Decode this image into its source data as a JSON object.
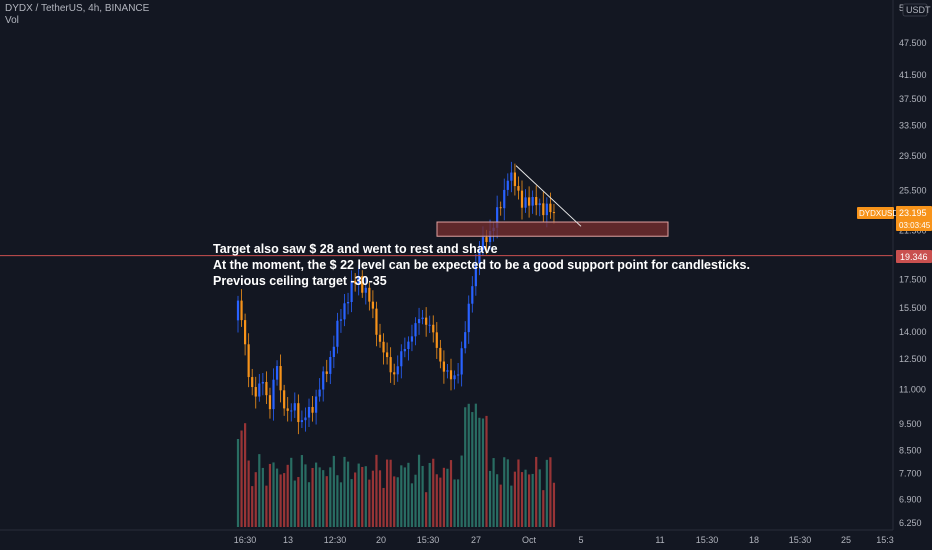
{
  "header": {
    "symbol_line": "DYDX / TetherUS, 4h, BINANCE",
    "indicator": "Vol"
  },
  "currency": "USDT",
  "price_scale_top": "5",
  "colors": {
    "background": "#131722",
    "up": "#2962ff",
    "down": "#f7931a",
    "vol_up": "#2e7d6f",
    "vol_down": "#b03a3a",
    "hline": "#c9504f",
    "zone_fill": "#7a2f2f",
    "price_badge": "#f7931a"
  },
  "annotations": {
    "lines": [
      "Target also saw $ 28 and went to rest and shave",
      "At the moment, the $ 22 level can be expected to be a good support point for candlesticks.",
      "Previous ceiling target -30-35"
    ]
  },
  "badges": {
    "symbol": "DYDXUSDT",
    "last_price": "23.195",
    "countdown": "03:03:45",
    "level": "19.346"
  },
  "chart_data": {
    "type": "candlestick",
    "price_scale": "log",
    "y_ticks": [
      "47.500",
      "41.500",
      "37.500",
      "33.500",
      "29.500",
      "25.500",
      "21.500",
      "17.500",
      "15.500",
      "14.000",
      "12.500",
      "11.000",
      "9.500",
      "8.500",
      "7.700",
      "6.900",
      "6.250"
    ],
    "x_ticks": [
      "16:30",
      "13",
      "12:30",
      "20",
      "15:30",
      "27",
      "Oct",
      "5",
      "11",
      "15:30",
      "18",
      "15:30",
      "25",
      "15:3"
    ],
    "horizontal_line_price": 19.346,
    "support_zone": [
      21.0,
      22.3
    ],
    "last_price": 23.195,
    "trendline": [
      28.3,
      21.9
    ],
    "anchors": [
      [
        0,
        16.0
      ],
      [
        1,
        14.5
      ],
      [
        2,
        13.2
      ],
      [
        3,
        11.8
      ],
      [
        5,
        10.6
      ],
      [
        7,
        11.5
      ],
      [
        9,
        10.2
      ],
      [
        11,
        12.2
      ],
      [
        12,
        11.0
      ],
      [
        14,
        9.8
      ],
      [
        16,
        10.3
      ],
      [
        18,
        9.5
      ],
      [
        20,
        10.0
      ],
      [
        22,
        10.6
      ],
      [
        24,
        11.5
      ],
      [
        26,
        12.6
      ],
      [
        28,
        14.2
      ],
      [
        30,
        15.8
      ],
      [
        32,
        16.9
      ],
      [
        34,
        17.6
      ],
      [
        36,
        16.6
      ],
      [
        38,
        15.2
      ],
      [
        40,
        13.4
      ],
      [
        42,
        12.3
      ],
      [
        44,
        11.8
      ],
      [
        46,
        12.6
      ],
      [
        48,
        13.6
      ],
      [
        50,
        14.3
      ],
      [
        52,
        15.0
      ],
      [
        54,
        14.4
      ],
      [
        56,
        13.1
      ],
      [
        58,
        12.0
      ],
      [
        60,
        11.4
      ],
      [
        62,
        12.0
      ],
      [
        64,
        13.9
      ],
      [
        66,
        17.5
      ],
      [
        68,
        19.8
      ],
      [
        70,
        21.0
      ],
      [
        72,
        22.0
      ],
      [
        74,
        24.0
      ],
      [
        76,
        27.2
      ],
      [
        78,
        26.1
      ],
      [
        80,
        24.5
      ],
      [
        82,
        23.9
      ],
      [
        84,
        24.8
      ],
      [
        86,
        23.0
      ],
      [
        88,
        23.9
      ],
      [
        89,
        23.195
      ]
    ]
  }
}
